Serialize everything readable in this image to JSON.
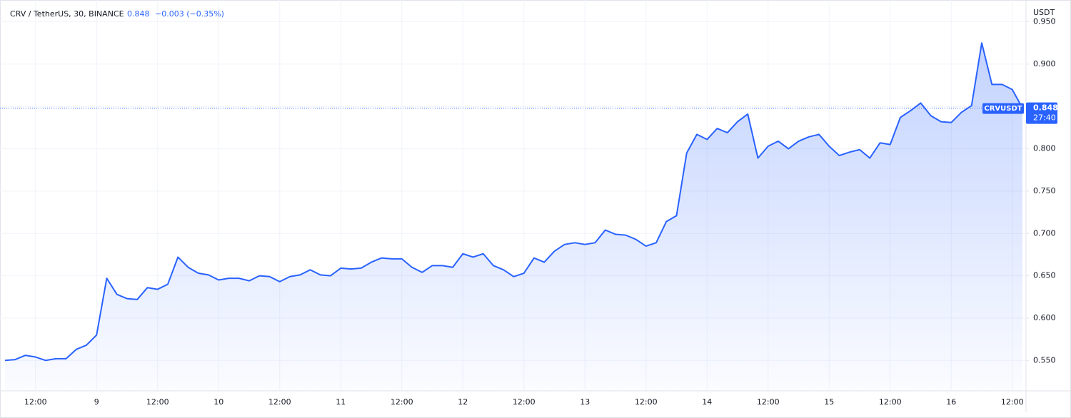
{
  "chart_data": {
    "type": "area",
    "title": "CRV / TetherUS, 30, BINANCE",
    "price": 0.848,
    "change": "−0.003 (−0.35%)",
    "y_axis_label": "USDT",
    "countdown": "27:40",
    "last_price": 0.848,
    "categories": [
      null,
      null,
      null,
      "12:00",
      null,
      null,
      null,
      null,
      null,
      "9",
      null,
      null,
      null,
      null,
      null,
      "12:00",
      null,
      null,
      null,
      null,
      null,
      "10",
      null,
      null,
      null,
      null,
      null,
      "12:00",
      null,
      null,
      null,
      null,
      null,
      "11",
      null,
      null,
      null,
      null,
      null,
      "12:00",
      null,
      null,
      null,
      null,
      null,
      "12",
      null,
      null,
      null,
      null,
      null,
      "12:00",
      null,
      null,
      null,
      null,
      null,
      "13",
      null,
      null,
      null,
      null,
      null,
      "12:00",
      null,
      null,
      null,
      null,
      null,
      "14",
      null,
      null,
      null,
      null,
      null,
      "12:00",
      null,
      null,
      null,
      null,
      null,
      "15",
      null,
      null,
      null,
      null,
      null,
      "12:00",
      null,
      null,
      null,
      null,
      null,
      "16",
      null,
      null,
      null,
      null,
      null,
      "12:00",
      null
    ],
    "series": [
      {
        "name": "CRVUSDT",
        "color": "#2962ff",
        "values": [
          0.55,
          0.551,
          0.556,
          0.554,
          0.55,
          0.552,
          0.552,
          0.563,
          0.568,
          0.58,
          0.647,
          0.628,
          0.623,
          0.622,
          0.636,
          0.634,
          0.64,
          0.672,
          0.66,
          0.653,
          0.651,
          0.645,
          0.647,
          0.647,
          0.644,
          0.65,
          0.649,
          0.643,
          0.649,
          0.651,
          0.657,
          0.651,
          0.65,
          0.659,
          0.658,
          0.659,
          0.666,
          0.671,
          0.67,
          0.67,
          0.66,
          0.654,
          0.662,
          0.662,
          0.66,
          0.676,
          0.672,
          0.676,
          0.662,
          0.657,
          0.649,
          0.653,
          0.671,
          0.666,
          0.679,
          0.687,
          0.689,
          0.687,
          0.689,
          0.704,
          0.699,
          0.698,
          0.693,
          0.685,
          0.689,
          0.714,
          0.721,
          0.795,
          0.817,
          0.811,
          0.824,
          0.819,
          0.832,
          0.841,
          0.789,
          0.803,
          0.809,
          0.8,
          0.809,
          0.814,
          0.817,
          0.803,
          0.792,
          0.796,
          0.799,
          0.789,
          0.807,
          0.805,
          0.837,
          0.845,
          0.854,
          0.839,
          0.832,
          0.831,
          0.843,
          0.851,
          0.925,
          0.876,
          0.876,
          0.87,
          0.848
        ]
      }
    ],
    "ylim": [
      0.514,
      0.969
    ],
    "yticks": [
      {
        "value": 0.55,
        "label": "0.550"
      },
      {
        "value": 0.6,
        "label": "0.600"
      },
      {
        "value": 0.65,
        "label": "0.650"
      },
      {
        "value": 0.7,
        "label": "0.700"
      },
      {
        "value": 0.75,
        "label": "0.750"
      },
      {
        "value": 0.8,
        "label": "0.800"
      },
      {
        "value": 0.85,
        "label": "0.850"
      },
      {
        "value": 0.9,
        "label": "0.900"
      },
      {
        "value": 0.95,
        "label": "0.950"
      }
    ],
    "grid": true
  }
}
